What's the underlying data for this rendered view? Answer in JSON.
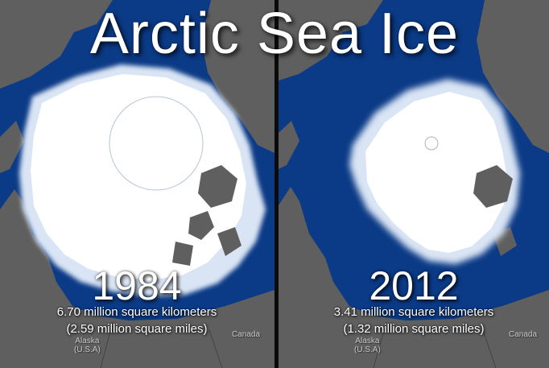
{
  "title": "Arctic Sea Ice",
  "colors": {
    "ocean": "#0b3a86",
    "land": "#5f5f5f",
    "ice": "#ffffff",
    "ice_edge": "#d9e4f4"
  },
  "panels": [
    {
      "year": "1984",
      "area_km": "6.70 million square kilometers",
      "area_mi": "(2.59 million square miles)",
      "label_alaska": "Alaska\n(U.S.A)",
      "label_canada": "Canada"
    },
    {
      "year": "2012",
      "area_km": "3.41 million square kilometers",
      "area_mi": "(1.32 million square miles)",
      "label_alaska": "Alaska\n(U.S.A)",
      "label_canada": "Canada"
    }
  ]
}
